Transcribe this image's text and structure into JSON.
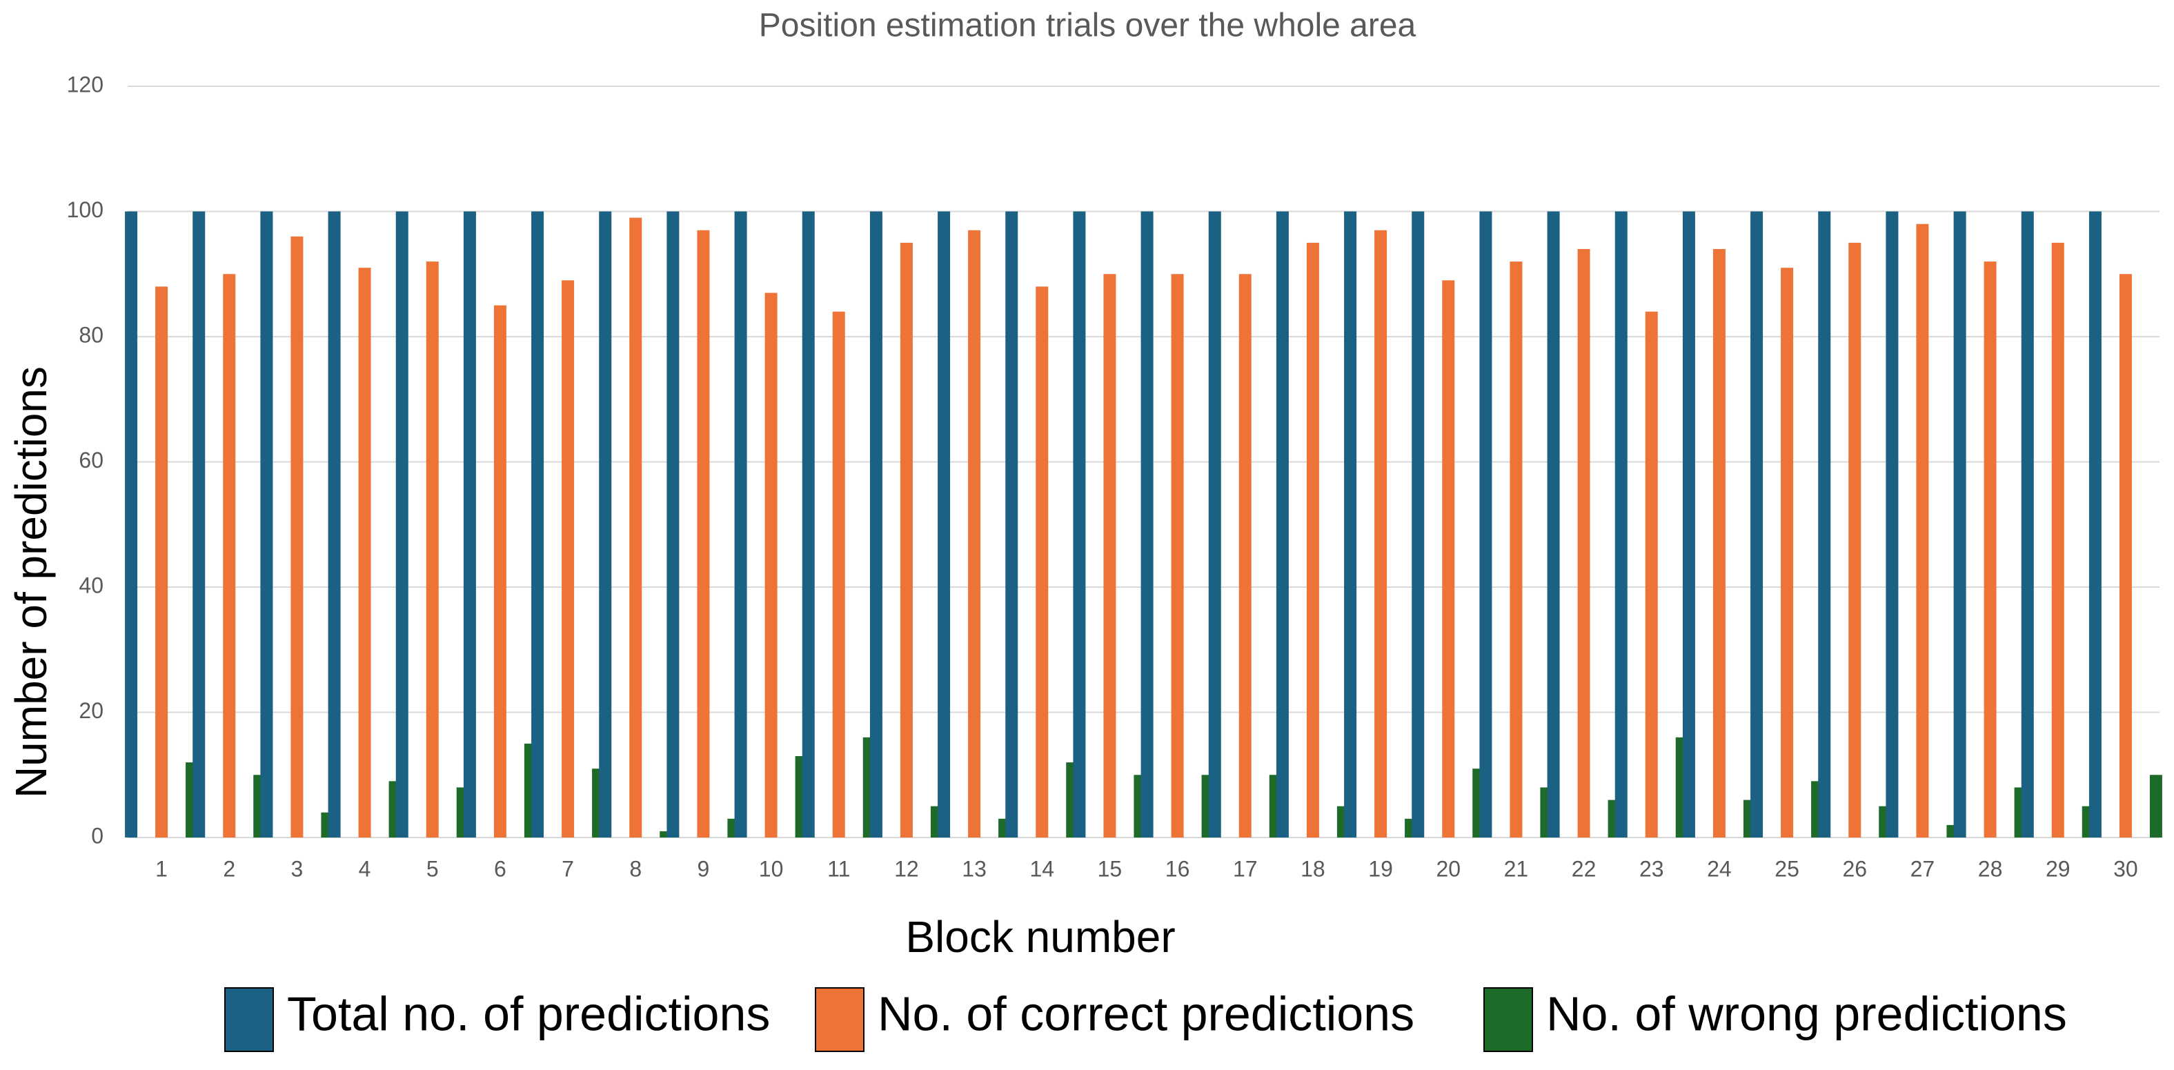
{
  "chart_data": {
    "type": "bar",
    "title": "Position estimation trials over the whole area",
    "x_label": "Block number",
    "y_label": "Number of predictions",
    "categories": [
      "1",
      "2",
      "3",
      "4",
      "5",
      "6",
      "7",
      "8",
      "9",
      "10",
      "11",
      "12",
      "13",
      "14",
      "15",
      "16",
      "17",
      "18",
      "19",
      "20",
      "21",
      "22",
      "23",
      "24",
      "25",
      "26",
      "27",
      "28",
      "29",
      "30"
    ],
    "series": [
      {
        "name": "Total no. of predictions",
        "color": "#1b6183",
        "values": [
          100,
          100,
          100,
          100,
          100,
          100,
          100,
          100,
          100,
          100,
          100,
          100,
          100,
          100,
          100,
          100,
          100,
          100,
          100,
          100,
          100,
          100,
          100,
          100,
          100,
          100,
          100,
          100,
          100,
          100
        ]
      },
      {
        "name": "No. of correct predictions",
        "color": "#ed7436",
        "values": [
          88,
          90,
          96,
          91,
          92,
          85,
          89,
          99,
          97,
          87,
          84,
          95,
          97,
          88,
          90,
          90,
          90,
          95,
          97,
          89,
          92,
          94,
          84,
          94,
          91,
          95,
          98,
          92,
          95,
          90
        ]
      },
      {
        "name": "No. of wrong predictions",
        "color": "#1e6b29",
        "values": [
          12,
          10,
          4,
          9,
          8,
          15,
          11,
          1,
          3,
          13,
          16,
          5,
          3,
          12,
          10,
          10,
          10,
          5,
          3,
          11,
          8,
          6,
          16,
          6,
          9,
          5,
          2,
          8,
          5,
          10
        ]
      }
    ],
    "ylim": [
      0,
      120
    ],
    "yticks": [
      0,
      20,
      40,
      60,
      80,
      100,
      120
    ],
    "grid": true
  }
}
